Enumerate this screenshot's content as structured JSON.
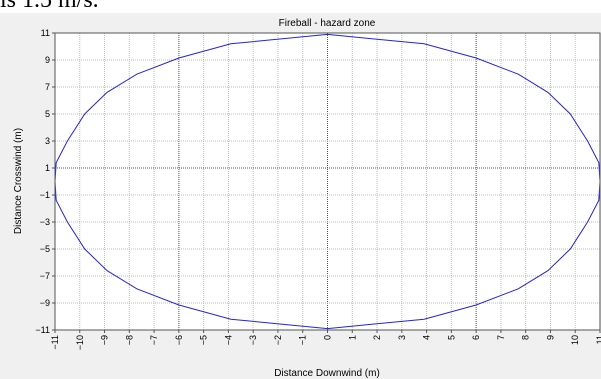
{
  "header": {
    "text": "is 1.5 m/s."
  },
  "chart_data": {
    "type": "line",
    "title": "Fireball - hazard zone",
    "xlabel": "Distance Downwind (m)",
    "ylabel": "Distance Crosswind (m)",
    "xlim": [
      -11,
      11
    ],
    "ylim": [
      -11,
      11
    ],
    "x_ticks": [
      -11,
      -10,
      -9,
      -8,
      -7,
      -6,
      -5,
      -4,
      -3,
      -2,
      -1,
      0,
      1,
      2,
      3,
      4,
      5,
      6,
      7,
      8,
      9,
      10,
      11
    ],
    "x_major_gridlines": [
      -6,
      0,
      6
    ],
    "y_ticks": [
      -11,
      -9,
      -7,
      -5,
      -3,
      -1,
      1,
      3,
      5,
      7,
      9,
      11
    ],
    "y_major_gridlines": [
      1
    ],
    "grid": true,
    "legend": "none",
    "series": [
      {
        "color": "#2323e0",
        "x": [
          0,
          3.9,
          6,
          7.7,
          8.9,
          9.8,
          10.5,
          10.95,
          11,
          10.95,
          10.5,
          9.8,
          8.9,
          7.7,
          6,
          3.9,
          0,
          -3.9,
          -6,
          -7.7,
          -8.9,
          -9.8,
          -10.5,
          -10.95,
          -11,
          -10.95,
          -10.5,
          -9.8,
          -8.9,
          -7.7,
          -6,
          -3.9,
          0
        ],
        "y": [
          10.9,
          10.2,
          9.15,
          7.95,
          6.6,
          5,
          3,
          1.4,
          0,
          -1.4,
          -3,
          -5,
          -6.6,
          -7.95,
          -9.15,
          -10.2,
          -10.9,
          -10.2,
          -9.15,
          -7.95,
          -6.6,
          -5,
          -3,
          -1.4,
          0,
          1.4,
          3,
          5,
          6.6,
          7.95,
          9.15,
          10.2,
          10.9
        ]
      }
    ]
  }
}
